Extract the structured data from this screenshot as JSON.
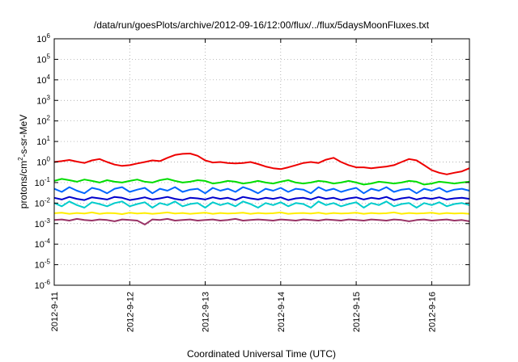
{
  "chart_data": {
    "type": "line",
    "title": "/data/run/goesPlots/archive/2012-09-16/12:00/flux/../flux/5daysMoonFluxes.txt",
    "xlabel": "Coordinated Universal Time (UTC)",
    "ylabel": {
      "base": "protons/cm",
      "sup": "2",
      "rest": "-s-sr-MeV"
    },
    "yscale": "log",
    "ylim": [
      1e-06,
      1000000.0
    ],
    "y_ticks": [
      {
        "value": 1e-06,
        "base": "10",
        "exp": "-6"
      },
      {
        "value": 1e-05,
        "base": "10",
        "exp": "-5"
      },
      {
        "value": 0.0001,
        "base": "10",
        "exp": "-4"
      },
      {
        "value": 0.001,
        "base": "10",
        "exp": "-3"
      },
      {
        "value": 0.01,
        "base": "10",
        "exp": "-2"
      },
      {
        "value": 0.1,
        "base": "10",
        "exp": "-1"
      },
      {
        "value": 1,
        "base": "10",
        "exp": "0"
      },
      {
        "value": 10,
        "base": "10",
        "exp": "1"
      },
      {
        "value": 100,
        "base": "10",
        "exp": "2"
      },
      {
        "value": 1000,
        "base": "10",
        "exp": "3"
      },
      {
        "value": 10000,
        "base": "10",
        "exp": "4"
      },
      {
        "value": 100000,
        "base": "10",
        "exp": "5"
      },
      {
        "value": 1000000,
        "base": "10",
        "exp": "6"
      }
    ],
    "xlim": [
      "2012-09-11",
      "2012-09-16 12:00"
    ],
    "x_ticks": [
      "2012-9-11",
      "2012-9-12",
      "2012-9-13",
      "2012-9-14",
      "2012-9-15",
      "2012-9-16"
    ],
    "grid": "dotted",
    "legend": "none",
    "series": [
      {
        "color": "#ee0000",
        "values": [
          1.0,
          1.1,
          1.25,
          1.05,
          0.9,
          1.2,
          1.4,
          1.0,
          0.75,
          0.65,
          0.7,
          0.85,
          1.0,
          1.2,
          1.1,
          1.6,
          2.2,
          2.5,
          2.6,
          2.0,
          1.2,
          0.95,
          1.0,
          0.9,
          0.85,
          0.9,
          1.0,
          0.8,
          0.6,
          0.5,
          0.45,
          0.55,
          0.7,
          0.9,
          1.0,
          0.9,
          1.3,
          1.6,
          1.0,
          0.7,
          0.55,
          0.55,
          0.5,
          0.55,
          0.6,
          0.7,
          1.0,
          1.4,
          1.2,
          0.7,
          0.4,
          0.3,
          0.25,
          0.3,
          0.35,
          0.5
        ]
      },
      {
        "color": "#00dd00",
        "values": [
          0.12,
          0.15,
          0.13,
          0.11,
          0.14,
          0.12,
          0.1,
          0.13,
          0.11,
          0.1,
          0.12,
          0.14,
          0.11,
          0.1,
          0.13,
          0.15,
          0.12,
          0.1,
          0.11,
          0.13,
          0.12,
          0.09,
          0.1,
          0.12,
          0.11,
          0.09,
          0.1,
          0.12,
          0.1,
          0.09,
          0.11,
          0.13,
          0.1,
          0.09,
          0.1,
          0.12,
          0.11,
          0.09,
          0.1,
          0.12,
          0.1,
          0.08,
          0.09,
          0.11,
          0.1,
          0.09,
          0.1,
          0.12,
          0.11,
          0.08,
          0.09,
          0.11,
          0.1,
          0.09,
          0.1,
          0.11
        ]
      },
      {
        "color": "#0066ff",
        "values": [
          0.05,
          0.035,
          0.06,
          0.04,
          0.03,
          0.055,
          0.045,
          0.03,
          0.05,
          0.06,
          0.035,
          0.045,
          0.055,
          0.03,
          0.05,
          0.04,
          0.06,
          0.035,
          0.045,
          0.05,
          0.03,
          0.055,
          0.04,
          0.05,
          0.035,
          0.06,
          0.045,
          0.03,
          0.05,
          0.04,
          0.055,
          0.035,
          0.05,
          0.045,
          0.03,
          0.06,
          0.04,
          0.05,
          0.035,
          0.045,
          0.055,
          0.03,
          0.05,
          0.04,
          0.06,
          0.035,
          0.045,
          0.05,
          0.03,
          0.05,
          0.04,
          0.055,
          0.035,
          0.045,
          0.05,
          0.04
        ]
      },
      {
        "color": "#0000cc",
        "values": [
          0.018,
          0.015,
          0.02,
          0.016,
          0.014,
          0.019,
          0.017,
          0.015,
          0.02,
          0.018,
          0.014,
          0.016,
          0.019,
          0.015,
          0.017,
          0.02,
          0.016,
          0.014,
          0.018,
          0.017,
          0.015,
          0.019,
          0.016,
          0.018,
          0.014,
          0.02,
          0.017,
          0.015,
          0.018,
          0.016,
          0.019,
          0.014,
          0.017,
          0.018,
          0.015,
          0.02,
          0.016,
          0.018,
          0.014,
          0.017,
          0.019,
          0.015,
          0.018,
          0.016,
          0.02,
          0.014,
          0.017,
          0.019,
          0.015,
          0.018,
          0.016,
          0.019,
          0.015,
          0.017,
          0.018,
          0.016
        ]
      },
      {
        "color": "#00cccc",
        "values": [
          0.01,
          0.007,
          0.012,
          0.008,
          0.006,
          0.011,
          0.009,
          0.007,
          0.01,
          0.012,
          0.007,
          0.009,
          0.011,
          0.006,
          0.01,
          0.008,
          0.012,
          0.007,
          0.009,
          0.01,
          0.006,
          0.011,
          0.008,
          0.01,
          0.007,
          0.012,
          0.009,
          0.006,
          0.01,
          0.008,
          0.011,
          0.007,
          0.01,
          0.009,
          0.006,
          0.012,
          0.008,
          0.01,
          0.007,
          0.009,
          0.011,
          0.006,
          0.01,
          0.008,
          0.012,
          0.007,
          0.009,
          0.01,
          0.006,
          0.01,
          0.008,
          0.011,
          0.007,
          0.009,
          0.01,
          0.008
        ]
      },
      {
        "color": "#ffee00",
        "values": [
          0.0032,
          0.0034,
          0.003,
          0.0033,
          0.0031,
          0.0035,
          0.003,
          0.0033,
          0.0032,
          0.0029,
          0.0034,
          0.0031,
          0.0033,
          0.003,
          0.0032,
          0.0035,
          0.0031,
          0.0033,
          0.003,
          0.0032,
          0.0034,
          0.003,
          0.0033,
          0.0031,
          0.0032,
          0.0034,
          0.003,
          0.0033,
          0.0031,
          0.0032,
          0.0035,
          0.003,
          0.0032,
          0.0033,
          0.0031,
          0.0034,
          0.003,
          0.0033,
          0.0031,
          0.0032,
          0.0034,
          0.003,
          0.0033,
          0.0031,
          0.0032,
          0.0035,
          0.003,
          0.0033,
          0.0031,
          0.0032,
          0.0034,
          0.003,
          0.0033,
          0.0031,
          0.0032,
          0.003
        ]
      },
      {
        "color": "#993366",
        "values": [
          0.0015,
          0.0016,
          0.0014,
          0.0017,
          0.0015,
          0.0014,
          0.0016,
          0.0015,
          0.0013,
          0.0016,
          0.0015,
          0.0014,
          0.0009,
          0.0016,
          0.0015,
          0.0017,
          0.0014,
          0.0015,
          0.0016,
          0.0014,
          0.0015,
          0.0016,
          0.0014,
          0.0015,
          0.0017,
          0.0014,
          0.0015,
          0.0016,
          0.0015,
          0.0014,
          0.0016,
          0.0015,
          0.0014,
          0.0016,
          0.0015,
          0.0014,
          0.0016,
          0.0015,
          0.0014,
          0.0016,
          0.0015,
          0.0014,
          0.0016,
          0.0015,
          0.0014,
          0.0016,
          0.0015,
          0.0013,
          0.0015,
          0.0016,
          0.0014,
          0.0015,
          0.0016,
          0.0014,
          0.0015,
          0.0013
        ]
      }
    ]
  }
}
